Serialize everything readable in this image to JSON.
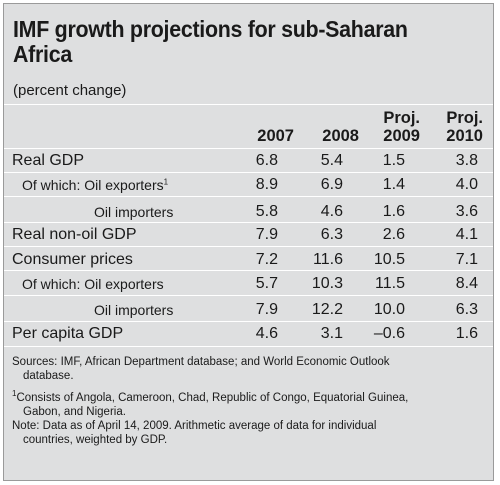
{
  "title_line1": "IMF growth projections for sub-Saharan",
  "title_line2": "Africa",
  "subtitle": "(percent change)",
  "columns": [
    {
      "top": "",
      "bottom": "2007"
    },
    {
      "top": "",
      "bottom": "2008"
    },
    {
      "top": "Proj.",
      "bottom": "2009"
    },
    {
      "top": "Proj.",
      "bottom": "2010"
    }
  ],
  "rows": [
    {
      "label": "Real GDP",
      "sup": "",
      "values": [
        "6.8",
        "5.4",
        "1.5",
        "3.8"
      ]
    },
    {
      "label": "Of which: Oil exporters",
      "sup": "1",
      "values": [
        "8.9",
        "6.9",
        "1.4",
        "4.0"
      ]
    },
    {
      "label": "Oil importers",
      "sup": "",
      "values": [
        "5.8",
        "4.6",
        "1.6",
        "3.6"
      ]
    },
    {
      "label": "Real non-oil GDP",
      "sup": "",
      "values": [
        "7.9",
        "6.3",
        "2.6",
        "4.1"
      ]
    },
    {
      "label": "Consumer prices",
      "sup": "",
      "values": [
        "7.2",
        "11.6",
        "10.5",
        "7.1"
      ]
    },
    {
      "label": "Of which: Oil exporters",
      "sup": "",
      "values": [
        "5.7",
        "10.3",
        "11.5",
        "8.4"
      ]
    },
    {
      "label": "Oil importers",
      "sup": "",
      "values": [
        "7.9",
        "12.2",
        "10.0",
        "6.3"
      ]
    },
    {
      "label": "Per capita GDP",
      "sup": "",
      "values": [
        "4.6",
        "3.1",
        "–0.6",
        "1.6"
      ]
    }
  ],
  "notes": {
    "sources_line1": "Sources: IMF, African Department database; and World Economic Outlook",
    "sources_line2": "database.",
    "footnote_mark": "1",
    "footnote_line1": "Consists of Angola, Cameroon, Chad, Republic of Congo, Equatorial Guinea,",
    "footnote_line2": "Gabon, and Nigeria.",
    "note_line1": "Note: Data as of April 14, 2009. Arithmetic average of data for individual",
    "note_line2": "countries, weighted by GDP."
  }
}
